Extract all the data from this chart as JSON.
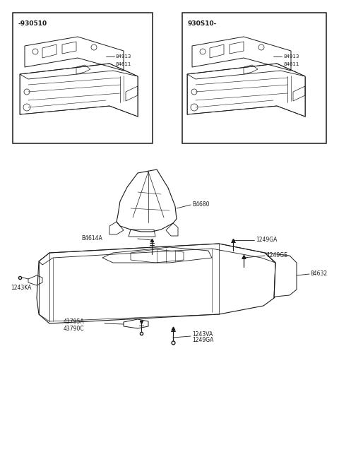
{
  "bg_color": "#ffffff",
  "line_color": "#1a1a1a",
  "text_color": "#1a1a1a",
  "figsize": [
    4.8,
    6.57
  ],
  "dpi": 100,
  "box1_label": "-930510",
  "box2_label": "930S10-",
  "label_B4680": "B4680",
  "label_B4614A": "B4614A",
  "label_1249GA_top": "1249GA",
  "label_1249GE": "1249GE",
  "label_1243KA": "1243KA",
  "label_43795A": "43795A",
  "label_43790C": "43790C",
  "label_84632": "84632",
  "label_1243VA": "1243VA",
  "label_1249GA_bot": "1249GA",
  "label_84913": "84913",
  "label_84611": "84611"
}
